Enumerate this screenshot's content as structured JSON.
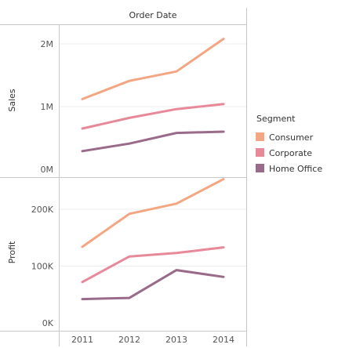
{
  "chart_data": {
    "type": "line",
    "header": "Order Date",
    "categories": [
      "2011",
      "2012",
      "2013",
      "2014"
    ],
    "legend": {
      "title": "Segment",
      "placement": "right",
      "items": [
        {
          "name": "Consumer",
          "color": "#f4a582"
        },
        {
          "name": "Corporate",
          "color": "#e8899a"
        },
        {
          "name": "Home Office",
          "color": "#9a6a8a"
        }
      ]
    },
    "panels": [
      {
        "id": "sales",
        "ylabel": "Sales",
        "ylim": [
          0,
          2300000
        ],
        "ticks": [
          {
            "value": 0,
            "label": "0M"
          },
          {
            "value": 1000000,
            "label": "1M"
          },
          {
            "value": 2000000,
            "label": "2M"
          }
        ],
        "gridlines": true,
        "series": [
          {
            "name": "Consumer",
            "values": [
              1120000,
              1410000,
              1560000,
              2080000
            ]
          },
          {
            "name": "Corporate",
            "values": [
              650000,
              820000,
              960000,
              1040000
            ]
          },
          {
            "name": "Home Office",
            "values": [
              290000,
              410000,
              580000,
              600000
            ]
          }
        ]
      },
      {
        "id": "profit",
        "ylabel": "Profit",
        "ylim": [
          0,
          270000
        ],
        "ticks": [
          {
            "value": 0,
            "label": "0K"
          },
          {
            "value": 100000,
            "label": "100K"
          },
          {
            "value": 200000,
            "label": "200K"
          }
        ],
        "gridlines": true,
        "series": [
          {
            "name": "Consumer",
            "values": [
              134000,
              192000,
              210000,
              253000
            ]
          },
          {
            "name": "Corporate",
            "values": [
              72000,
              117000,
              123000,
              133000
            ]
          },
          {
            "name": "Home Office",
            "values": [
              42000,
              44000,
              93000,
              81000
            ]
          }
        ]
      }
    ]
  }
}
